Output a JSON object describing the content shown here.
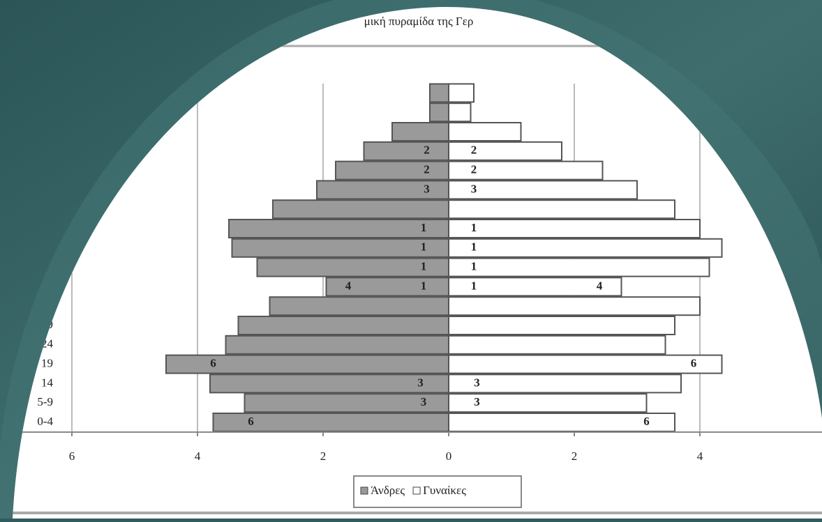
{
  "chart_data": {
    "type": "pyramid",
    "title": "μική πυραμίδα της Γερ",
    "categories": [
      "0-4",
      "5-9",
      "14",
      "19",
      "24",
      "9",
      null,
      null,
      null,
      null,
      null,
      null,
      null,
      null,
      null,
      null,
      null,
      null
    ],
    "series": [
      {
        "name": "Άνδρες",
        "color": "#9a9a9a",
        "values": [
          -3.75,
          -3.25,
          -3.8,
          -4.5,
          -3.55,
          -3.35,
          -2.85,
          -1.95,
          -3.05,
          -3.45,
          -3.5,
          -2.8,
          -2.1,
          -1.8,
          -1.35,
          -0.9,
          -0.3,
          -0.3
        ]
      },
      {
        "name": "Γυναίκες",
        "color": "#ffffff",
        "values": [
          3.6,
          3.15,
          3.7,
          4.35,
          3.45,
          3.6,
          4.0,
          2.75,
          4.15,
          4.35,
          4.0,
          3.6,
          3.0,
          2.45,
          1.8,
          1.15,
          0.35,
          0.4
        ]
      }
    ],
    "markers": [
      {
        "text": "6",
        "row": 0,
        "x": -3.15
      },
      {
        "text": "6",
        "row": 0,
        "x": 3.15
      },
      {
        "text": "3",
        "row": 1,
        "x": -0.4
      },
      {
        "text": "3",
        "row": 1,
        "x": 0.45
      },
      {
        "text": "3",
        "row": 2,
        "x": -0.45
      },
      {
        "text": "3",
        "row": 2,
        "x": 0.45
      },
      {
        "text": "6",
        "row": 3,
        "x": -3.75
      },
      {
        "text": "6",
        "row": 3,
        "x": 3.9
      },
      {
        "text": "4",
        "row": 7,
        "x": -1.6
      },
      {
        "text": "1",
        "row": 7,
        "x": -0.4
      },
      {
        "text": "1",
        "row": 7,
        "x": 0.4
      },
      {
        "text": "4",
        "row": 7,
        "x": 2.4
      },
      {
        "text": "1",
        "row": 8,
        "x": -0.4
      },
      {
        "text": "1",
        "row": 8,
        "x": 0.4
      },
      {
        "text": "1",
        "row": 9,
        "x": -0.4
      },
      {
        "text": "1",
        "row": 9,
        "x": 0.4
      },
      {
        "text": "1",
        "row": 10,
        "x": -0.4
      },
      {
        "text": "1",
        "row": 10,
        "x": 0.4
      },
      {
        "text": "3",
        "row": 12,
        "x": -0.35
      },
      {
        "text": "3",
        "row": 12,
        "x": 0.4
      },
      {
        "text": "2",
        "row": 13,
        "x": -0.35
      },
      {
        "text": "2",
        "row": 13,
        "x": 0.4
      },
      {
        "text": "2",
        "row": 14,
        "x": -0.35
      },
      {
        "text": "2",
        "row": 14,
        "x": 0.4
      }
    ],
    "xlim": [
      -6,
      6
    ],
    "xticks": [
      {
        "value": -6,
        "label": "6"
      },
      {
        "value": -4,
        "label": "4"
      },
      {
        "value": -2,
        "label": "2"
      },
      0,
      2,
      4
    ],
    "grid": true
  }
}
